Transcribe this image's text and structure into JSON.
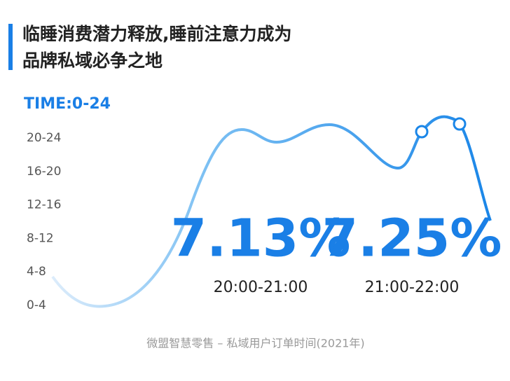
{
  "header": {
    "title_lines": [
      "临睡消费潜力释放,睡前注意力成为",
      "品牌私域必争之地"
    ]
  },
  "axis": {
    "title": "TIME:0-24",
    "labels": [
      "20-24",
      "16-20",
      "12-16",
      "8-12",
      "4-8",
      "0-4"
    ]
  },
  "highlights": [
    {
      "value": "7.13%",
      "period": "20:00-21:00"
    },
    {
      "value": "7.25%",
      "period": "21:00-22:00"
    }
  ],
  "source": "微盟智慧零售 – 私域用户订单时间(2021年)"
}
